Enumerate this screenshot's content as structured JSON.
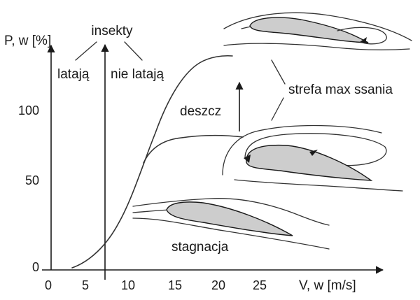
{
  "labels": {
    "y_axis": "P, w [%]",
    "x_axis": "V, w [m/s]",
    "insects": "insekty",
    "flying": "latają",
    "not_flying": "nie latają",
    "rain": "deszcz",
    "max_suction_zone": "strefa max ssania",
    "stagnation": "stagnacja"
  },
  "x_ticks": [
    "0",
    "5",
    "10",
    "15",
    "20",
    "25"
  ],
  "y_ticks": [
    "0",
    "50",
    "100"
  ]
}
